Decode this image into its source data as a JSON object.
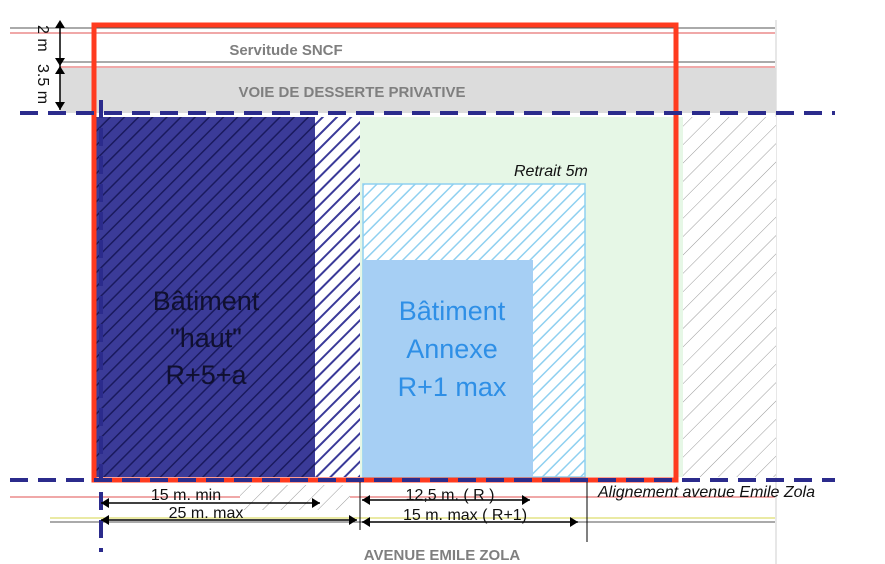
{
  "labels": {
    "servitude": "Servitude SNCF",
    "voie": "VOIE DE DESSERTE PRIVATIVE",
    "dim_2m": "2 m",
    "dim_35m": "3.5 m",
    "retrait": "Retrait 5m",
    "batiment_haut": [
      "Bâtiment",
      "\"haut\"",
      "R+5+a"
    ],
    "batiment_annexe": [
      "Bâtiment",
      "Annexe",
      "R+1 max"
    ],
    "dim_15min": "15 m. min",
    "dim_25max": "25 m. max",
    "dim_125r": "12,5 m. ( R )",
    "dim_15max_r1": "15 m. max ( R+1)",
    "alignement": "Alignement avenue Emile Zola",
    "avenue": "AVENUE EMILE ZOLA"
  },
  "colors": {
    "parcel_border": "#ff3b1f",
    "dashed_lines": "#2b2b8c",
    "haut_fill": "#3a3a99",
    "annexe_fill": "#a6cff4",
    "annexe_hatch": "#8fd0f0",
    "green_zone": "#e6f7e6",
    "voie_fill": "#dcdcdc"
  }
}
